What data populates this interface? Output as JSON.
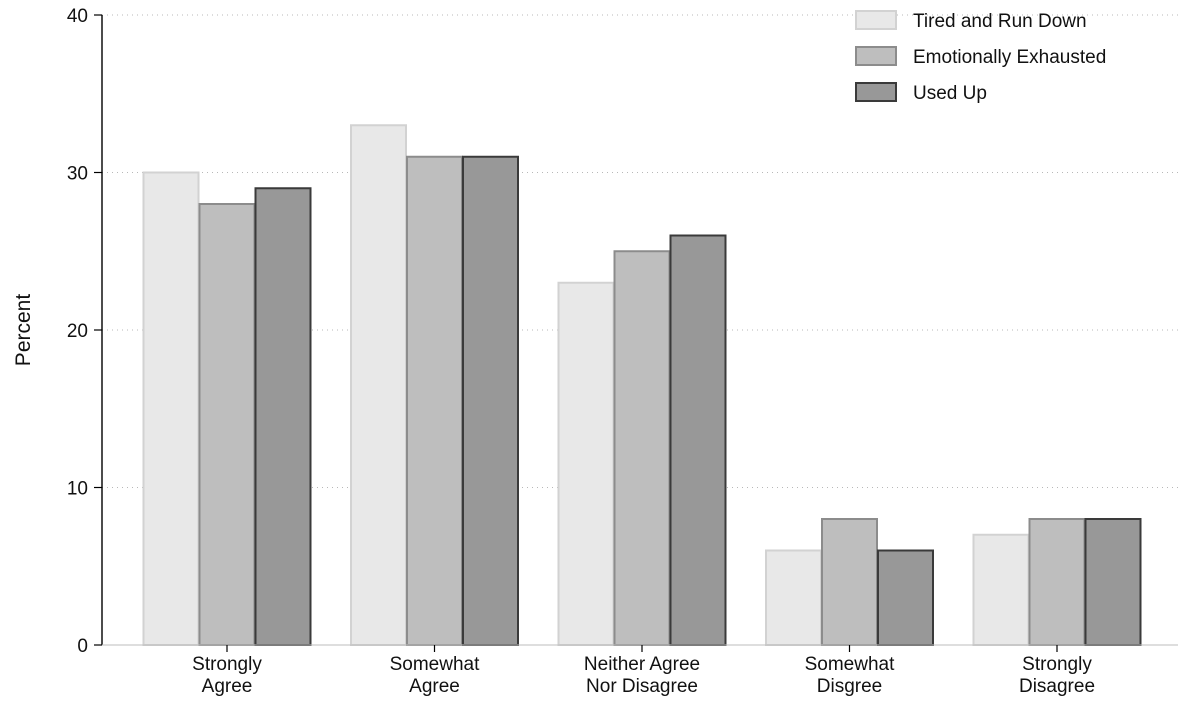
{
  "chart_data": {
    "type": "bar",
    "ylabel": "Percent",
    "xlabel": "",
    "ylim": [
      0,
      40
    ],
    "yticks": [
      0,
      10,
      20,
      30,
      40
    ],
    "grid": "horizontal dotted",
    "legend_position": "top-right",
    "categories": [
      [
        "Strongly",
        "Agree"
      ],
      [
        "Somewhat",
        "Agree"
      ],
      [
        "Neither Agree",
        "Nor Disagree"
      ],
      [
        "Somewhat",
        "Disgree"
      ],
      [
        "Strongly",
        "Disagree"
      ]
    ],
    "series": [
      {
        "name": "Tired and Run Down",
        "values": [
          30,
          33,
          23,
          6,
          7
        ],
        "fill": "#e8e8e8",
        "stroke": "#d2d2d2"
      },
      {
        "name": "Emotionally Exhausted",
        "values": [
          28,
          31,
          25,
          8,
          8
        ],
        "fill": "#bebebe",
        "stroke": "#8c8c8c"
      },
      {
        "name": "Used Up",
        "values": [
          29,
          31,
          26,
          6,
          8
        ],
        "fill": "#989898",
        "stroke": "#3a3a3a"
      }
    ]
  }
}
